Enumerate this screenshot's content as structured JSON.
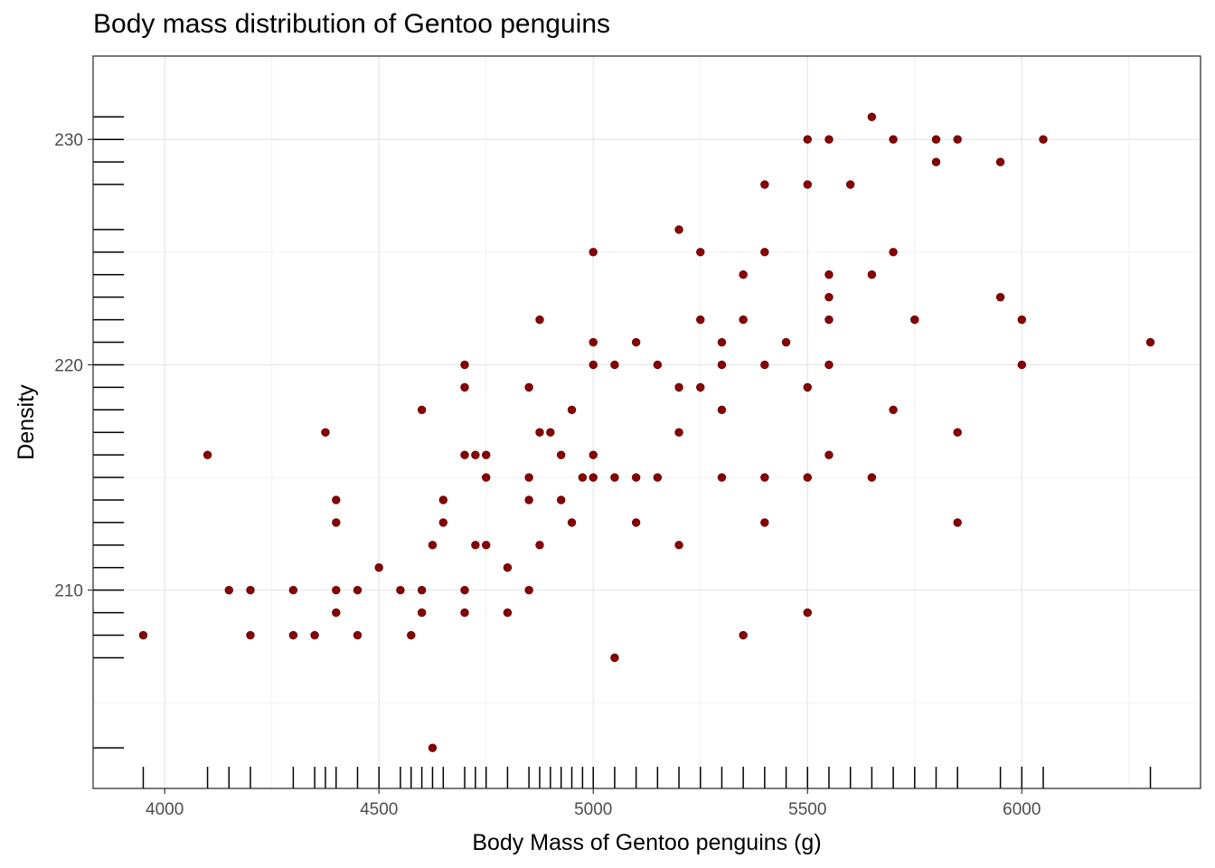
{
  "chart_data": {
    "type": "scatter",
    "title": "Body mass distribution of Gentoo penguins",
    "xlabel": "Body Mass of Gentoo penguins (g)",
    "ylabel": "Density",
    "xlim": [
      3833,
      6417
    ],
    "ylim": [
      201.2,
      233.7
    ],
    "x_ticks": [
      4000,
      4500,
      5000,
      5500,
      6000
    ],
    "y_ticks": [
      210,
      220,
      230
    ],
    "grid": true,
    "rug": true,
    "point_color": "#8b0000",
    "points": [
      [
        3950,
        208
      ],
      [
        4100,
        216
      ],
      [
        4150,
        210
      ],
      [
        4200,
        210
      ],
      [
        4200,
        208
      ],
      [
        4300,
        210
      ],
      [
        4300,
        208
      ],
      [
        4350,
        208
      ],
      [
        4375,
        217
      ],
      [
        4400,
        214
      ],
      [
        4400,
        213
      ],
      [
        4400,
        210
      ],
      [
        4400,
        209
      ],
      [
        4450,
        210
      ],
      [
        4450,
        208
      ],
      [
        4500,
        211
      ],
      [
        4550,
        210
      ],
      [
        4575,
        208
      ],
      [
        4600,
        218
      ],
      [
        4600,
        210
      ],
      [
        4600,
        209
      ],
      [
        4625,
        212
      ],
      [
        4625,
        203
      ],
      [
        4650,
        214
      ],
      [
        4650,
        213
      ],
      [
        4700,
        220
      ],
      [
        4700,
        219
      ],
      [
        4700,
        216
      ],
      [
        4700,
        210
      ],
      [
        4700,
        209
      ],
      [
        4725,
        216
      ],
      [
        4725,
        212
      ],
      [
        4750,
        216
      ],
      [
        4750,
        215
      ],
      [
        4750,
        212
      ],
      [
        4800,
        211
      ],
      [
        4800,
        209
      ],
      [
        4850,
        219
      ],
      [
        4850,
        215
      ],
      [
        4850,
        214
      ],
      [
        4850,
        210
      ],
      [
        4875,
        222
      ],
      [
        4875,
        217
      ],
      [
        4875,
        212
      ],
      [
        4900,
        217
      ],
      [
        4925,
        216
      ],
      [
        4925,
        214
      ],
      [
        4950,
        218
      ],
      [
        4950,
        213
      ],
      [
        4975,
        215
      ],
      [
        5000,
        225
      ],
      [
        5000,
        221
      ],
      [
        5000,
        220
      ],
      [
        5000,
        216
      ],
      [
        5000,
        215
      ],
      [
        5050,
        220
      ],
      [
        5050,
        215
      ],
      [
        5050,
        207
      ],
      [
        5100,
        221
      ],
      [
        5100,
        215
      ],
      [
        5100,
        213
      ],
      [
        5150,
        220
      ],
      [
        5150,
        215
      ],
      [
        5200,
        226
      ],
      [
        5200,
        219
      ],
      [
        5200,
        217
      ],
      [
        5200,
        212
      ],
      [
        5250,
        225
      ],
      [
        5250,
        222
      ],
      [
        5250,
        219
      ],
      [
        5300,
        221
      ],
      [
        5300,
        220
      ],
      [
        5300,
        218
      ],
      [
        5300,
        215
      ],
      [
        5350,
        224
      ],
      [
        5350,
        222
      ],
      [
        5350,
        208
      ],
      [
        5400,
        228
      ],
      [
        5400,
        225
      ],
      [
        5400,
        220
      ],
      [
        5400,
        215
      ],
      [
        5400,
        213
      ],
      [
        5450,
        221
      ],
      [
        5500,
        230
      ],
      [
        5500,
        228
      ],
      [
        5500,
        219
      ],
      [
        5500,
        215
      ],
      [
        5500,
        209
      ],
      [
        5550,
        230
      ],
      [
        5550,
        224
      ],
      [
        5550,
        223
      ],
      [
        5550,
        222
      ],
      [
        5550,
        220
      ],
      [
        5550,
        216
      ],
      [
        5600,
        228
      ],
      [
        5650,
        231
      ],
      [
        5650,
        224
      ],
      [
        5650,
        215
      ],
      [
        5700,
        230
      ],
      [
        5700,
        225
      ],
      [
        5700,
        218
      ],
      [
        5750,
        222
      ],
      [
        5800,
        230
      ],
      [
        5800,
        229
      ],
      [
        5850,
        230
      ],
      [
        5850,
        217
      ],
      [
        5850,
        213
      ],
      [
        5950,
        229
      ],
      [
        5950,
        223
      ],
      [
        6000,
        222
      ],
      [
        6000,
        220
      ],
      [
        6050,
        230
      ],
      [
        6300,
        221
      ]
    ]
  }
}
